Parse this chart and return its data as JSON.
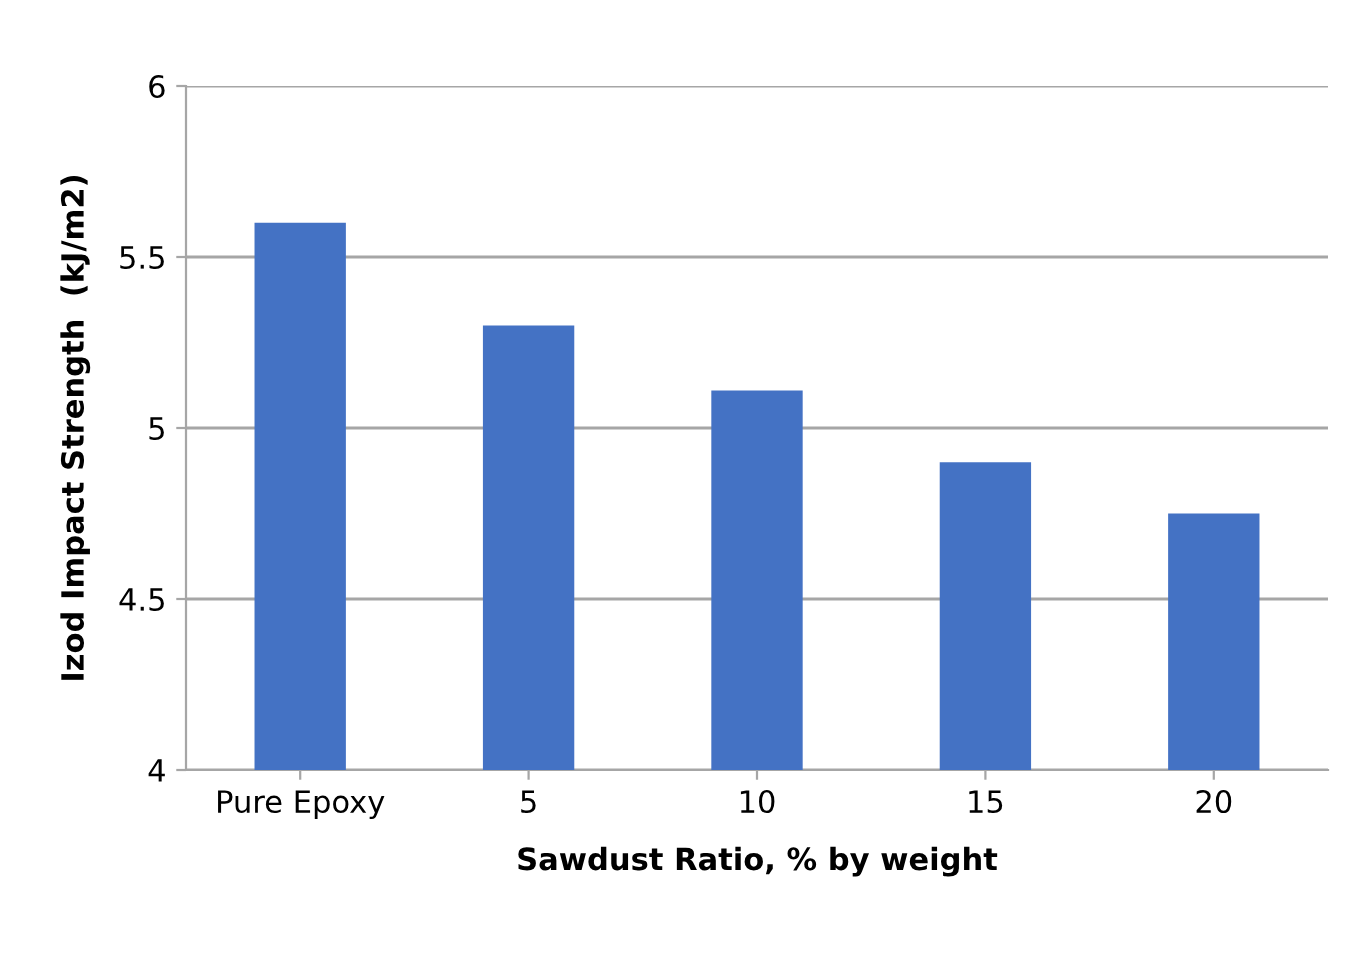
{
  "chart_data": {
    "type": "bar",
    "xlabel": "Sawdust Ratio, % by weight",
    "ylabel": "Izod Impact Strength  (kJ/m2)",
    "categories": [
      "Pure Epoxy",
      "5",
      "10",
      "15",
      "20"
    ],
    "values": [
      5.6,
      5.3,
      5.11,
      4.9,
      4.75
    ],
    "color": "#4472c4",
    "ylim": [
      4,
      6
    ],
    "yticks": [
      4,
      4.5,
      5,
      5.5,
      6
    ],
    "grid": "y"
  }
}
